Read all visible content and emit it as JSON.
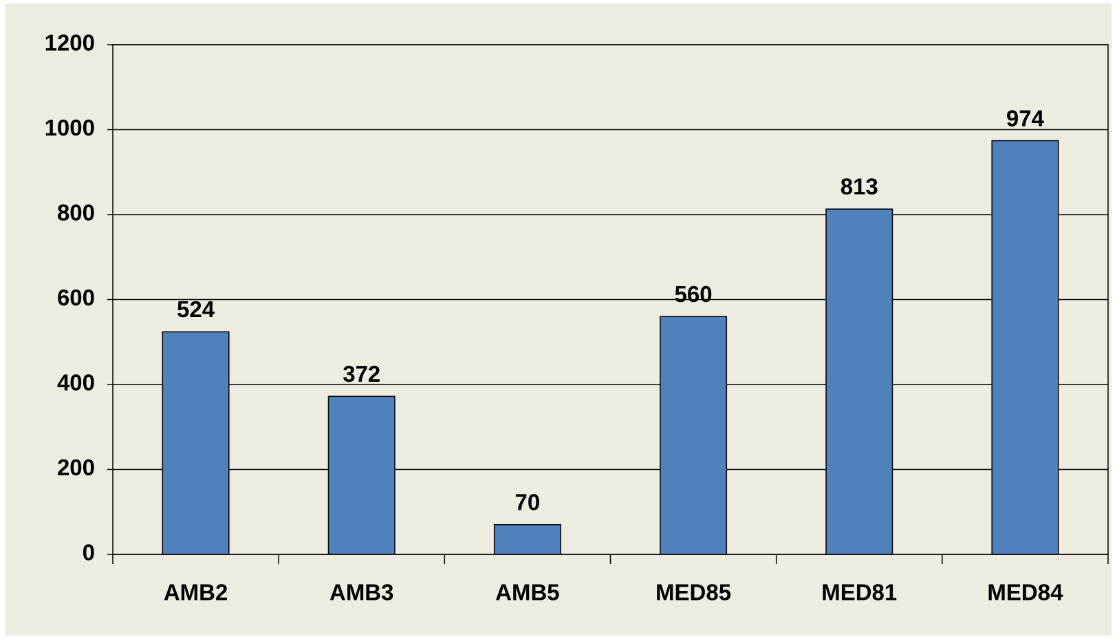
{
  "chart_data": {
    "type": "bar",
    "categories": [
      "AMB2",
      "AMB3",
      "AMB5",
      "MED85",
      "MED81",
      "MED84"
    ],
    "values": [
      524,
      372,
      70,
      560,
      813,
      974
    ],
    "color": "#4f81bd",
    "ylim": [
      0,
      1200
    ],
    "yticks": [
      0,
      200,
      400,
      600,
      800,
      1000,
      1200
    ],
    "grid": true
  }
}
